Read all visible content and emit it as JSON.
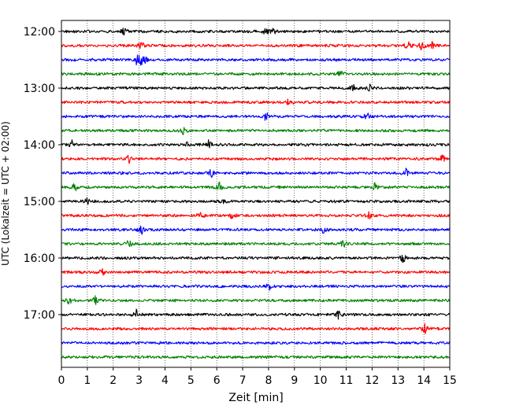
{
  "chart_data": {
    "type": "line",
    "title": "",
    "xlabel": "Zeit  [min]",
    "ylabel": "UTC (Lokalzeit = UTC + 02:00)",
    "xlim": [
      0,
      15
    ],
    "x_ticks": [
      "0",
      "1",
      "2",
      "3",
      "4",
      "5",
      "6",
      "7",
      "8",
      "9",
      "10",
      "11",
      "12",
      "13",
      "14",
      "15"
    ],
    "y_ticks": [
      "12:00",
      "13:00",
      "14:00",
      "15:00",
      "16:00",
      "17:00"
    ],
    "grid": "vertical dotted lines at each minute",
    "color_cycle": [
      "#000000",
      "#ff0000",
      "#0000ff",
      "#008000"
    ],
    "row_interval_minutes": 15,
    "series": [
      {
        "start": "12:00",
        "color": "#000000",
        "events_min": [
          2.4,
          7.9,
          8.2
        ]
      },
      {
        "start": "12:15",
        "color": "#ff0000",
        "events_min": [
          3.1,
          13.4,
          13.9,
          14.3
        ]
      },
      {
        "start": "12:30",
        "color": "#0000ff",
        "events_min": [
          2.9,
          3.05,
          3.2
        ]
      },
      {
        "start": "12:45",
        "color": "#008000",
        "events_min": [
          10.8
        ]
      },
      {
        "start": "13:00",
        "color": "#000000",
        "events_min": [
          11.3,
          11.9
        ]
      },
      {
        "start": "13:15",
        "color": "#ff0000",
        "events_min": [
          8.8
        ]
      },
      {
        "start": "13:30",
        "color": "#0000ff",
        "events_min": [
          7.9,
          11.8
        ]
      },
      {
        "start": "13:45",
        "color": "#008000",
        "events_min": [
          4.7
        ]
      },
      {
        "start": "14:00",
        "color": "#000000",
        "events_min": [
          0.4,
          4.8,
          5.7
        ]
      },
      {
        "start": "14:15",
        "color": "#ff0000",
        "events_min": [
          2.6,
          14.7
        ]
      },
      {
        "start": "14:30",
        "color": "#0000ff",
        "events_min": [
          5.8,
          13.3
        ]
      },
      {
        "start": "14:45",
        "color": "#008000",
        "events_min": [
          0.5,
          6.1,
          12.1
        ]
      },
      {
        "start": "15:00",
        "color": "#000000",
        "events_min": [
          1.0,
          6.3
        ]
      },
      {
        "start": "15:15",
        "color": "#ff0000",
        "events_min": [
          5.35,
          6.6,
          11.9
        ]
      },
      {
        "start": "15:30",
        "color": "#0000ff",
        "events_min": [
          3.1,
          10.1
        ]
      },
      {
        "start": "15:45",
        "color": "#008000",
        "events_min": [
          2.6,
          10.9
        ]
      },
      {
        "start": "16:00",
        "color": "#000000",
        "events_min": [
          13.2
        ]
      },
      {
        "start": "16:15",
        "color": "#ff0000",
        "events_min": [
          1.6
        ]
      },
      {
        "start": "16:30",
        "color": "#0000ff",
        "events_min": [
          8.0
        ]
      },
      {
        "start": "16:45",
        "color": "#008000",
        "events_min": [
          0.3,
          1.3
        ]
      },
      {
        "start": "17:00",
        "color": "#000000",
        "events_min": [
          2.9,
          10.7
        ]
      },
      {
        "start": "17:15",
        "color": "#ff0000",
        "events_min": [
          14.05
        ]
      },
      {
        "start": "17:30",
        "color": "#0000ff",
        "events_min": []
      },
      {
        "start": "17:45",
        "color": "#008000",
        "events_min": []
      }
    ]
  }
}
